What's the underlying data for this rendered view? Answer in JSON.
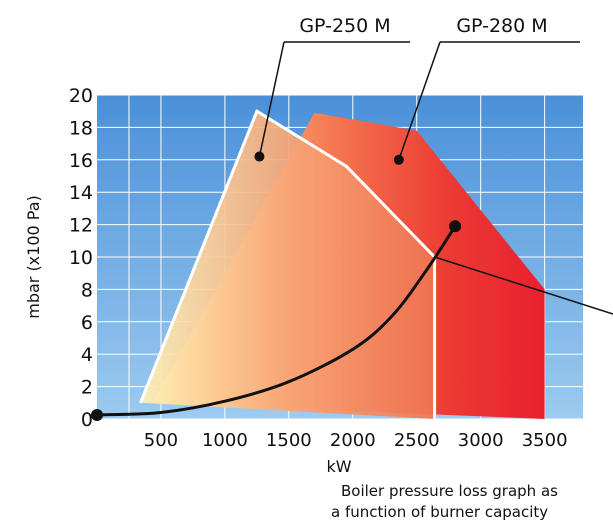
{
  "chart_data": {
    "type": "area",
    "xlabel": "kW",
    "ylabel": "mbar (x100 Pa)",
    "xlim": [
      0,
      3800
    ],
    "ylim": [
      0,
      20
    ],
    "x_ticks": [
      "500",
      "1000",
      "1500",
      "2000",
      "2500",
      "3000",
      "3500"
    ],
    "y_ticks": [
      "0",
      "2",
      "4",
      "6",
      "8",
      "10",
      "12",
      "14",
      "16",
      "18",
      "20"
    ],
    "grid": true,
    "background_gradient": [
      "#4a90d9",
      "#9dcbf0"
    ],
    "series": [
      {
        "name": "GP-250 M",
        "outline_color": "#ffffff",
        "points": [
          [
            340,
            1.0
          ],
          [
            1250,
            19.0
          ],
          [
            1950,
            15.6
          ],
          [
            2640,
            10.0
          ],
          [
            2640,
            0
          ]
        ]
      },
      {
        "name": "GP-280 M",
        "color": "#e8202e",
        "points": [
          [
            430,
            1.0
          ],
          [
            1700,
            18.9
          ],
          [
            2500,
            17.8
          ],
          [
            3500,
            8.0
          ],
          [
            3500,
            0
          ]
        ]
      }
    ],
    "pressure_loss_curve": {
      "color": "#111111",
      "points": [
        [
          0,
          0.25
        ],
        [
          500,
          0.4
        ],
        [
          1000,
          1.1
        ],
        [
          1500,
          2.3
        ],
        [
          2000,
          4.3
        ],
        [
          2300,
          6.3
        ],
        [
          2560,
          9.0
        ],
        [
          2800,
          11.9
        ]
      ]
    },
    "callouts": [
      {
        "label": "GP-250 M",
        "point": [
          1270,
          16.2
        ]
      },
      {
        "label": "GP-280 M",
        "point": [
          2360,
          16.0
        ]
      }
    ],
    "caption": [
      "Boiler pressure loss graph as",
      "a function of burner capacity"
    ]
  }
}
